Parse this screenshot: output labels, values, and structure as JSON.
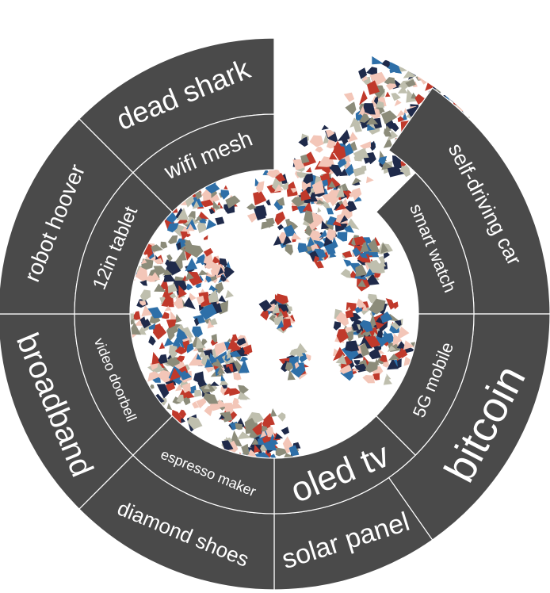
{
  "wheel": {
    "segment_color": "#4a4a4a",
    "divider_color": "#ffffff",
    "label_color": "#ffffff",
    "outer_ring": [
      {
        "label": "dead shark"
      },
      {
        "label": "self-driving car"
      },
      {
        "label": "bitcoin"
      },
      {
        "label": "solar panel"
      },
      {
        "label": "diamond shoes"
      },
      {
        "label": "broadband"
      },
      {
        "label": "robot hoover"
      }
    ],
    "inner_ring": [
      {
        "label": "wifi mesh"
      },
      {
        "label": "smart watch"
      },
      {
        "label": "5G mobile"
      },
      {
        "label": "oled tv"
      },
      {
        "label": "espresso maker"
      },
      {
        "label": "video doorbell"
      },
      {
        "label": "12in tablet"
      }
    ],
    "center_image": {
      "name": "abstract-mosaic-artwork",
      "colors": [
        "#1f2a4a",
        "#c0392b",
        "#8c8c7a",
        "#bfbfae",
        "#2e6fa8",
        "#f3c6b8"
      ]
    }
  }
}
